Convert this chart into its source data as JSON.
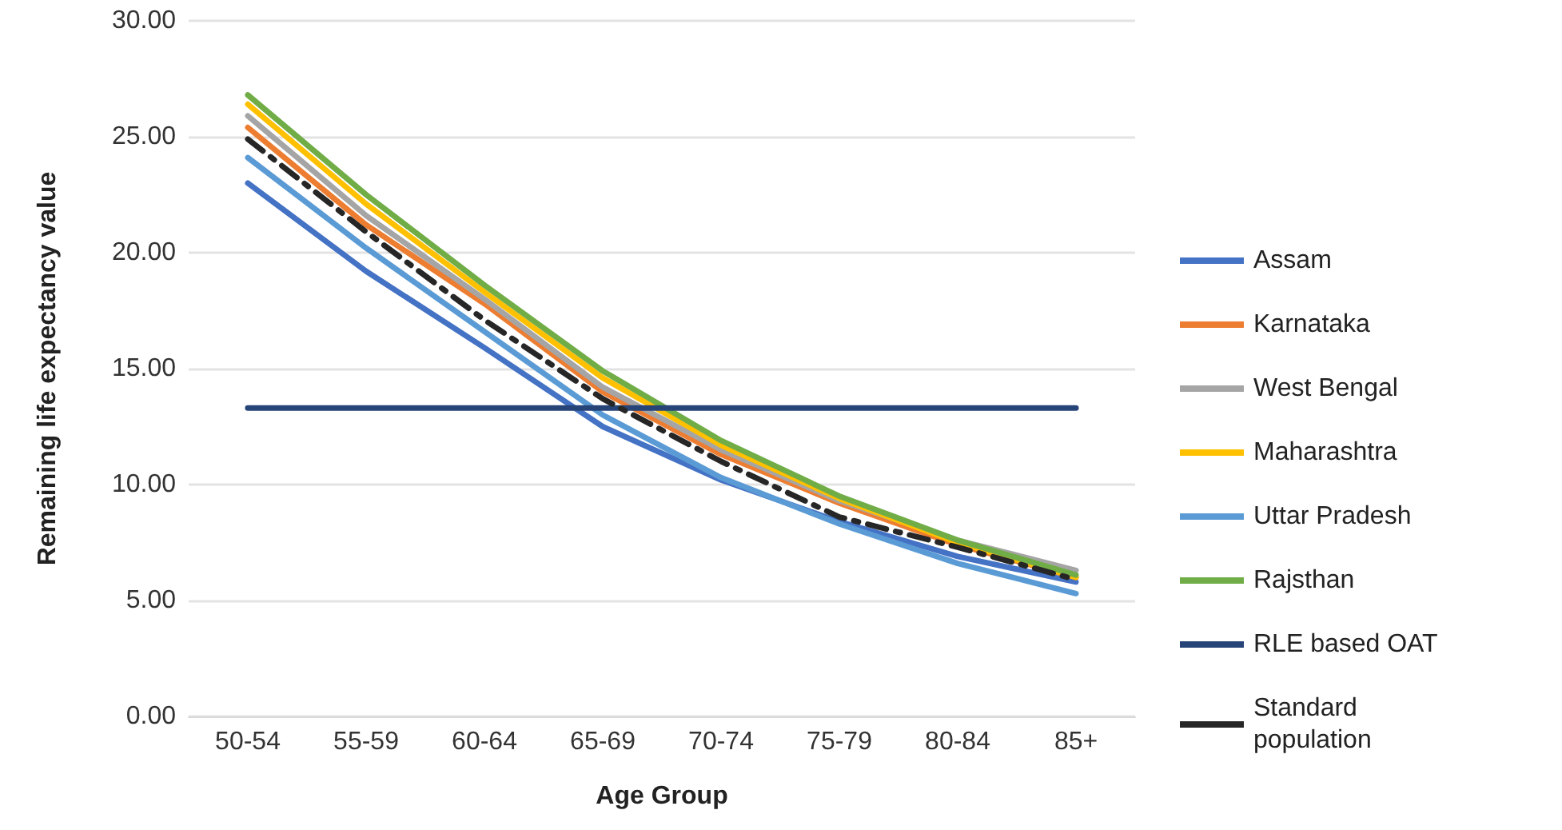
{
  "chart_data": {
    "type": "line",
    "xlabel": "Age Group",
    "ylabel": "Remaining life expectancy value",
    "categories": [
      "50-54",
      "55-59",
      "60-64",
      "65-69",
      "70-74",
      "75-79",
      "80-84",
      "85+"
    ],
    "ylim": [
      0,
      30
    ],
    "yticks": [
      {
        "value": 0,
        "label": "0.00"
      },
      {
        "value": 5,
        "label": "5.00"
      },
      {
        "value": 10,
        "label": "10.00"
      },
      {
        "value": 15,
        "label": "15.00"
      },
      {
        "value": 20,
        "label": "20.00"
      },
      {
        "value": 25,
        "label": "25.00"
      },
      {
        "value": 30,
        "label": "30.00"
      }
    ],
    "grid": "y",
    "legend": "right",
    "marker": "none",
    "series": [
      {
        "name": "Assam",
        "color": "#4472c4",
        "values": [
          23.0,
          19.2,
          15.9,
          12.5,
          10.2,
          8.4,
          6.9,
          5.8
        ]
      },
      {
        "name": "Karnataka",
        "color": "#ed7d31",
        "values": [
          25.4,
          21.2,
          17.8,
          14.0,
          11.3,
          9.2,
          7.4,
          6.0
        ]
      },
      {
        "name": "West Bengal",
        "color": "#a5a5a5",
        "values": [
          25.9,
          21.6,
          18.0,
          14.2,
          11.5,
          9.3,
          7.6,
          6.3
        ]
      },
      {
        "name": "Maharashtra",
        "color": "#ffc000",
        "values": [
          26.4,
          22.1,
          18.3,
          14.6,
          11.7,
          9.4,
          7.5,
          6.0
        ]
      },
      {
        "name": "Uttar Pradesh",
        "color": "#5b9bd5",
        "values": [
          24.1,
          20.2,
          16.6,
          13.0,
          10.3,
          8.3,
          6.6,
          5.3
        ]
      },
      {
        "name": "Rajsthan",
        "color": "#70ad47",
        "values": [
          26.8,
          22.5,
          18.6,
          14.9,
          11.9,
          9.5,
          7.6,
          6.1
        ]
      },
      {
        "name": "RLE based OAT",
        "color": "#264478",
        "values": [
          13.3,
          13.3,
          13.3,
          13.3,
          13.3,
          13.3,
          13.3,
          13.3
        ]
      },
      {
        "name": "Standard population",
        "color": "#262626",
        "line_style": "dashed",
        "values": [
          24.9,
          20.9,
          17.1,
          13.7,
          11.0,
          8.6,
          7.3,
          5.9
        ]
      }
    ]
  }
}
